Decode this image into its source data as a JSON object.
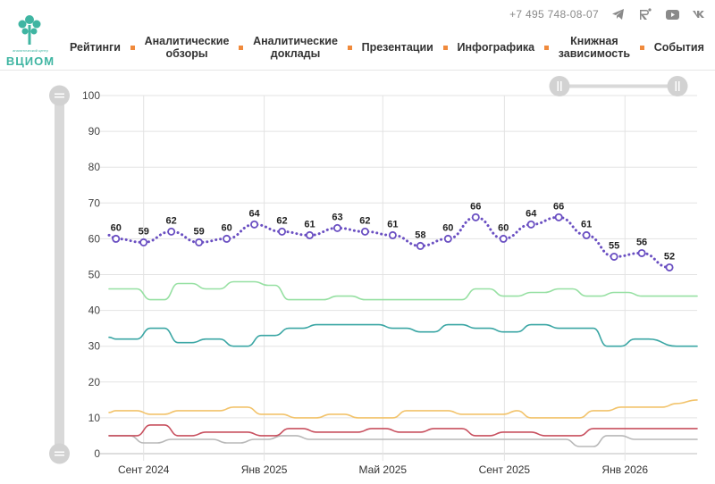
{
  "header": {
    "logo_text": "ВЦИОМ",
    "logo_subtext": "аналитический центр",
    "phone": "+7 495 748-08-07",
    "social": [
      "telegram-icon",
      "rutube-icon",
      "youtube-icon",
      "vk-icon"
    ],
    "nav": [
      {
        "label": "Рейтинги"
      },
      {
        "label": "Аналитические\nобзоры"
      },
      {
        "label": "Аналитические\nдоклады"
      },
      {
        "label": "Презентации"
      },
      {
        "label": "Инфографика"
      },
      {
        "label": "Книжная\nзависимость"
      },
      {
        "label": "События"
      }
    ],
    "accent_color": "#f08a3c",
    "brand_color": "#3fb5a2"
  },
  "chart_data": {
    "type": "line",
    "ylim": [
      0,
      100
    ],
    "yticks": [
      0,
      10,
      20,
      30,
      40,
      50,
      60,
      70,
      80,
      90,
      100
    ],
    "xlim": [
      "2024-07-28",
      "2026-03-15"
    ],
    "xticks": [
      {
        "date": "2024-09-01",
        "label": "Сент 2024"
      },
      {
        "date": "2025-01-01",
        "label": "Янв 2025"
      },
      {
        "date": "2025-05-01",
        "label": "Май 2025"
      },
      {
        "date": "2025-09-01",
        "label": "Сент 2025"
      },
      {
        "date": "2026-01-01",
        "label": "Янв 2026"
      }
    ],
    "grid": true,
    "series": [
      {
        "color": "#6a4fc2",
        "style": "dotted",
        "markers": true,
        "labels": true,
        "points": [
          [
            "2024-07-28",
            61
          ],
          [
            "2024-08-04",
            60
          ],
          [
            "2024-09-01",
            59
          ],
          [
            "2024-09-29",
            62
          ],
          [
            "2024-10-27",
            59
          ],
          [
            "2024-11-24",
            60
          ],
          [
            "2024-12-22",
            64
          ],
          [
            "2025-01-19",
            62
          ],
          [
            "2025-02-16",
            61
          ],
          [
            "2025-03-16",
            63
          ],
          [
            "2025-04-13",
            62
          ],
          [
            "2025-05-11",
            61
          ],
          [
            "2025-06-08",
            58
          ],
          [
            "2025-07-06",
            60
          ],
          [
            "2025-08-03",
            66
          ],
          [
            "2025-08-31",
            60
          ],
          [
            "2025-09-28",
            64
          ],
          [
            "2025-10-26",
            66
          ],
          [
            "2025-11-23",
            61
          ],
          [
            "2025-12-21",
            55
          ],
          [
            "2026-01-18",
            56
          ],
          [
            "2026-02-15",
            52
          ]
        ]
      },
      {
        "color": "#96e0a2",
        "points": [
          [
            "2024-07-28",
            46
          ],
          [
            "2024-08-25",
            46
          ],
          [
            "2024-09-08",
            43
          ],
          [
            "2024-09-22",
            43
          ],
          [
            "2024-10-06",
            47.5
          ],
          [
            "2024-10-20",
            47.5
          ],
          [
            "2024-11-03",
            46
          ],
          [
            "2024-11-17",
            46
          ],
          [
            "2024-12-01",
            48
          ],
          [
            "2024-12-22",
            48
          ],
          [
            "2025-01-05",
            47
          ],
          [
            "2025-01-12",
            47
          ],
          [
            "2025-01-26",
            43
          ],
          [
            "2025-03-02",
            43
          ],
          [
            "2025-03-16",
            44
          ],
          [
            "2025-03-30",
            44
          ],
          [
            "2025-04-13",
            43
          ],
          [
            "2025-07-20",
            43
          ],
          [
            "2025-08-03",
            46
          ],
          [
            "2025-08-17",
            46
          ],
          [
            "2025-08-31",
            44
          ],
          [
            "2025-09-14",
            44
          ],
          [
            "2025-09-28",
            45
          ],
          [
            "2025-10-12",
            45
          ],
          [
            "2025-10-26",
            46
          ],
          [
            "2025-11-09",
            46
          ],
          [
            "2025-11-23",
            44
          ],
          [
            "2025-12-07",
            44
          ],
          [
            "2025-12-21",
            45
          ],
          [
            "2026-01-04",
            45
          ],
          [
            "2026-01-18",
            44
          ],
          [
            "2026-03-15",
            44
          ]
        ]
      },
      {
        "color": "#3aa6a4",
        "points": [
          [
            "2024-07-28",
            32.5
          ],
          [
            "2024-08-04",
            32
          ],
          [
            "2024-08-25",
            32
          ],
          [
            "2024-09-08",
            35
          ],
          [
            "2024-09-22",
            35
          ],
          [
            "2024-10-06",
            31
          ],
          [
            "2024-10-20",
            31
          ],
          [
            "2024-11-03",
            32
          ],
          [
            "2024-11-17",
            32
          ],
          [
            "2024-12-01",
            30
          ],
          [
            "2024-12-15",
            30
          ],
          [
            "2024-12-29",
            33
          ],
          [
            "2025-01-12",
            33
          ],
          [
            "2025-01-26",
            35
          ],
          [
            "2025-02-09",
            35
          ],
          [
            "2025-02-23",
            36
          ],
          [
            "2025-04-27",
            36
          ],
          [
            "2025-05-11",
            35
          ],
          [
            "2025-05-25",
            35
          ],
          [
            "2025-06-08",
            34
          ],
          [
            "2025-06-22",
            34
          ],
          [
            "2025-07-06",
            36
          ],
          [
            "2025-07-20",
            36
          ],
          [
            "2025-08-03",
            35
          ],
          [
            "2025-08-17",
            35
          ],
          [
            "2025-08-31",
            34
          ],
          [
            "2025-09-14",
            34
          ],
          [
            "2025-09-28",
            36
          ],
          [
            "2025-10-12",
            36
          ],
          [
            "2025-10-26",
            35
          ],
          [
            "2025-11-30",
            35
          ],
          [
            "2025-12-14",
            30
          ],
          [
            "2025-12-28",
            30
          ],
          [
            "2026-01-11",
            32
          ],
          [
            "2026-01-25",
            32
          ],
          [
            "2026-02-22",
            30
          ],
          [
            "2026-03-15",
            30
          ]
        ]
      },
      {
        "color": "#f2c36b",
        "points": [
          [
            "2024-07-28",
            11.5
          ],
          [
            "2024-08-04",
            12
          ],
          [
            "2024-08-25",
            12
          ],
          [
            "2024-09-08",
            11
          ],
          [
            "2024-09-22",
            11
          ],
          [
            "2024-10-06",
            12
          ],
          [
            "2024-11-17",
            12
          ],
          [
            "2024-12-01",
            13
          ],
          [
            "2024-12-15",
            13
          ],
          [
            "2024-12-29",
            11
          ],
          [
            "2025-01-19",
            11
          ],
          [
            "2025-02-02",
            10
          ],
          [
            "2025-02-23",
            10
          ],
          [
            "2025-03-09",
            11
          ],
          [
            "2025-03-23",
            11
          ],
          [
            "2025-04-06",
            10
          ],
          [
            "2025-05-11",
            10
          ],
          [
            "2025-05-25",
            12
          ],
          [
            "2025-07-06",
            12
          ],
          [
            "2025-07-20",
            11
          ],
          [
            "2025-08-31",
            11
          ],
          [
            "2025-09-14",
            12
          ],
          [
            "2025-09-28",
            10
          ],
          [
            "2025-11-16",
            10
          ],
          [
            "2025-11-30",
            12
          ],
          [
            "2025-12-14",
            12
          ],
          [
            "2025-12-28",
            13
          ],
          [
            "2026-02-08",
            13
          ],
          [
            "2026-02-22",
            14
          ],
          [
            "2026-03-15",
            15
          ]
        ]
      },
      {
        "color": "#c8505f",
        "points": [
          [
            "2024-07-28",
            5
          ],
          [
            "2024-08-25",
            5
          ],
          [
            "2024-09-08",
            8
          ],
          [
            "2024-09-22",
            8
          ],
          [
            "2024-10-06",
            5
          ],
          [
            "2024-10-20",
            5
          ],
          [
            "2024-11-03",
            6
          ],
          [
            "2024-12-15",
            6
          ],
          [
            "2024-12-29",
            5
          ],
          [
            "2025-01-12",
            5
          ],
          [
            "2025-01-26",
            7
          ],
          [
            "2025-02-09",
            7
          ],
          [
            "2025-02-23",
            6
          ],
          [
            "2025-04-06",
            6
          ],
          [
            "2025-04-20",
            7
          ],
          [
            "2025-05-04",
            7
          ],
          [
            "2025-05-18",
            6
          ],
          [
            "2025-06-08",
            6
          ],
          [
            "2025-06-22",
            7
          ],
          [
            "2025-07-20",
            7
          ],
          [
            "2025-08-03",
            5
          ],
          [
            "2025-08-17",
            5
          ],
          [
            "2025-08-31",
            6
          ],
          [
            "2025-09-28",
            6
          ],
          [
            "2025-10-12",
            5
          ],
          [
            "2025-11-16",
            5
          ],
          [
            "2025-11-30",
            7
          ],
          [
            "2026-03-15",
            7
          ]
        ]
      },
      {
        "color": "#b8b8b8",
        "points": [
          [
            "2024-07-28",
            5
          ],
          [
            "2024-08-18",
            5
          ],
          [
            "2024-09-01",
            3
          ],
          [
            "2024-09-15",
            3
          ],
          [
            "2024-09-29",
            4
          ],
          [
            "2024-11-10",
            4
          ],
          [
            "2024-11-24",
            3
          ],
          [
            "2024-12-08",
            3
          ],
          [
            "2024-12-22",
            4
          ],
          [
            "2025-01-05",
            4
          ],
          [
            "2025-01-19",
            5
          ],
          [
            "2025-02-02",
            5
          ],
          [
            "2025-02-16",
            4
          ],
          [
            "2025-09-28",
            4
          ],
          [
            "2025-11-02",
            4
          ],
          [
            "2025-11-16",
            2
          ],
          [
            "2025-11-30",
            2
          ],
          [
            "2025-12-14",
            5
          ],
          [
            "2025-12-28",
            5
          ],
          [
            "2026-01-11",
            4
          ],
          [
            "2026-03-15",
            4
          ]
        ]
      }
    ]
  }
}
